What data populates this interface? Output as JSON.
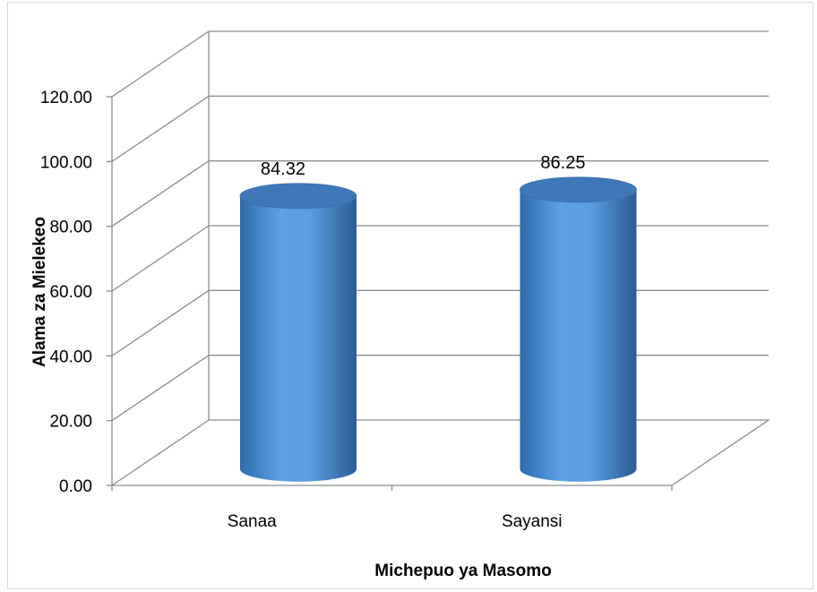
{
  "chart_data": {
    "type": "bar",
    "style": "3d-cylinder",
    "title": "",
    "xlabel": "Michepuo ya Masomo",
    "ylabel": "Alama za Mielekeo",
    "categories": [
      "Sanaa",
      "Sayansi"
    ],
    "values": [
      84.32,
      86.25
    ],
    "data_labels": [
      "84.32",
      "86.25"
    ],
    "yticks": [
      "0.00",
      "20.00",
      "40.00",
      "60.00",
      "80.00",
      "100.00",
      "120.00"
    ],
    "ylim": [
      0,
      120
    ],
    "grid": true,
    "legend": "none",
    "colors": {
      "bar": "#4f8fd6",
      "bar_dark": "#2b5f96",
      "bar_top": "#3f78b8",
      "grid": "#8c8c8c"
    }
  }
}
